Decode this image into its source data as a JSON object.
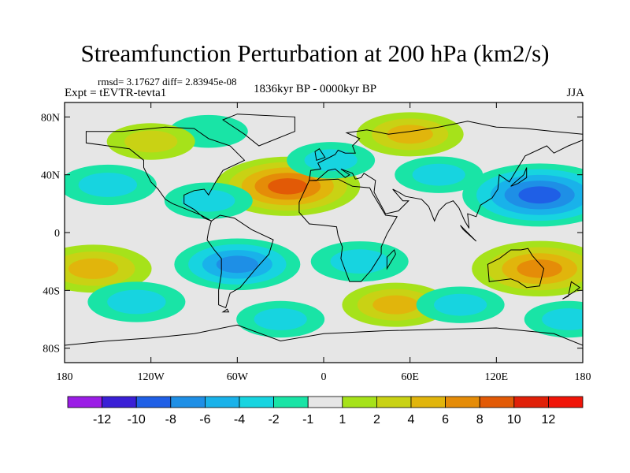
{
  "chart_data": {
    "type": "heatmap",
    "title": "Streamfunction Perturbation at 200 hPa (km2/s)",
    "stats": "rmsd= 3.17627  diff= 2.83945e-08",
    "experiment": "Expt = tEVTR-tevta1",
    "period": "1836kyr BP - 0000kyr BP",
    "season": "JJA",
    "x_axis": {
      "range": [
        -180,
        180
      ],
      "ticks": [
        {
          "value": -180,
          "label": "180"
        },
        {
          "value": -120,
          "label": "120W"
        },
        {
          "value": -60,
          "label": "60W"
        },
        {
          "value": 0,
          "label": "0"
        },
        {
          "value": 60,
          "label": "60E"
        },
        {
          "value": 120,
          "label": "120E"
        },
        {
          "value": 180,
          "label": "180"
        }
      ]
    },
    "y_axis": {
      "range": [
        -90,
        90
      ],
      "ticks": [
        {
          "value": 80,
          "label": "80N"
        },
        {
          "value": 40,
          "label": "40N"
        },
        {
          "value": 0,
          "label": "0"
        },
        {
          "value": -40,
          "label": "40S"
        },
        {
          "value": -80,
          "label": "80S"
        }
      ]
    },
    "colorbar": {
      "labels": [
        "-12",
        "-10",
        "-8",
        "-6",
        "-4",
        "-2",
        "-1",
        "1",
        "2",
        "4",
        "6",
        "8",
        "10",
        "12"
      ],
      "colors": [
        "#9b1de6",
        "#3a1fd6",
        "#1f5fe6",
        "#1e8fe6",
        "#19b2ea",
        "#17d4e0",
        "#19e4a6",
        "#e6e6e6",
        "#a6e21a",
        "#c9d214",
        "#e1b50c",
        "#e58c08",
        "#e25a06",
        "#e02008",
        "#f01408"
      ]
    },
    "anomalies": [
      {
        "lon": -25,
        "lat": 32,
        "value": 9
      },
      {
        "lon": -150,
        "lat": 33,
        "value": -4
      },
      {
        "lon": -80,
        "lat": 22,
        "value": -3
      },
      {
        "lon": 60,
        "lat": 68,
        "value": 5
      },
      {
        "lon": -80,
        "lat": 70,
        "value": -2
      },
      {
        "lon": 150,
        "lat": 26,
        "value": -10
      },
      {
        "lon": 80,
        "lat": 40,
        "value": -3
      },
      {
        "lon": -60,
        "lat": -22,
        "value": -7
      },
      {
        "lon": 25,
        "lat": -20,
        "value": -4
      },
      {
        "lon": 150,
        "lat": -25,
        "value": 8
      },
      {
        "lon": -160,
        "lat": -25,
        "value": 6
      },
      {
        "lon": 50,
        "lat": -50,
        "value": 5
      },
      {
        "lon": -130,
        "lat": -48,
        "value": -4
      },
      {
        "lon": -30,
        "lat": -60,
        "value": -3
      },
      {
        "lon": 95,
        "lat": -50,
        "value": -3
      },
      {
        "lon": 170,
        "lat": -60,
        "value": -3
      },
      {
        "lon": -120,
        "lat": 63,
        "value": 3
      },
      {
        "lon": 5,
        "lat": 50,
        "value": -3
      }
    ]
  }
}
